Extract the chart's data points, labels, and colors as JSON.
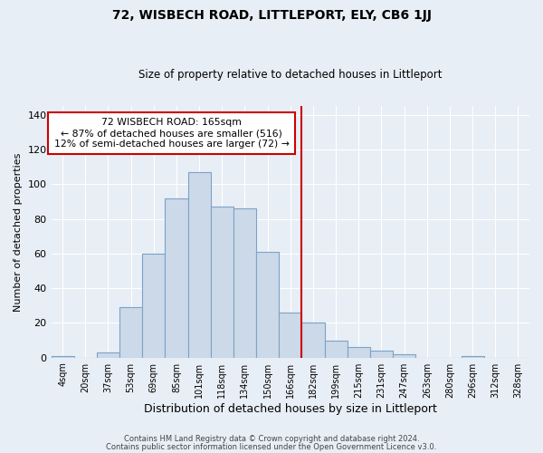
{
  "title": "72, WISBECH ROAD, LITTLEPORT, ELY, CB6 1JJ",
  "subtitle": "Size of property relative to detached houses in Littleport",
  "xlabel": "Distribution of detached houses by size in Littleport",
  "ylabel": "Number of detached properties",
  "bar_labels": [
    "4sqm",
    "20sqm",
    "37sqm",
    "53sqm",
    "69sqm",
    "85sqm",
    "101sqm",
    "118sqm",
    "134sqm",
    "150sqm",
    "166sqm",
    "182sqm",
    "199sqm",
    "215sqm",
    "231sqm",
    "247sqm",
    "263sqm",
    "280sqm",
    "296sqm",
    "312sqm",
    "328sqm"
  ],
  "bar_heights": [
    1,
    0,
    3,
    29,
    60,
    92,
    107,
    87,
    86,
    61,
    26,
    20,
    10,
    6,
    4,
    2,
    0,
    0,
    1,
    0,
    0
  ],
  "bar_color": "#ccd9e8",
  "bar_edge_color": "#7ba3c8",
  "vline_x": 10.5,
  "vline_color": "#cc0000",
  "annotation_title": "72 WISBECH ROAD: 165sqm",
  "annotation_line1": "← 87% of detached houses are smaller (516)",
  "annotation_line2": "12% of semi-detached houses are larger (72) →",
  "annotation_box_edge": "#cc0000",
  "annotation_box_bg": "white",
  "ylim": [
    0,
    145
  ],
  "footer1": "Contains HM Land Registry data © Crown copyright and database right 2024.",
  "footer2": "Contains public sector information licensed under the Open Government Licence v3.0.",
  "background_color": "#e8eef5",
  "plot_bg_color": "#e8eef5",
  "grid_color": "white"
}
